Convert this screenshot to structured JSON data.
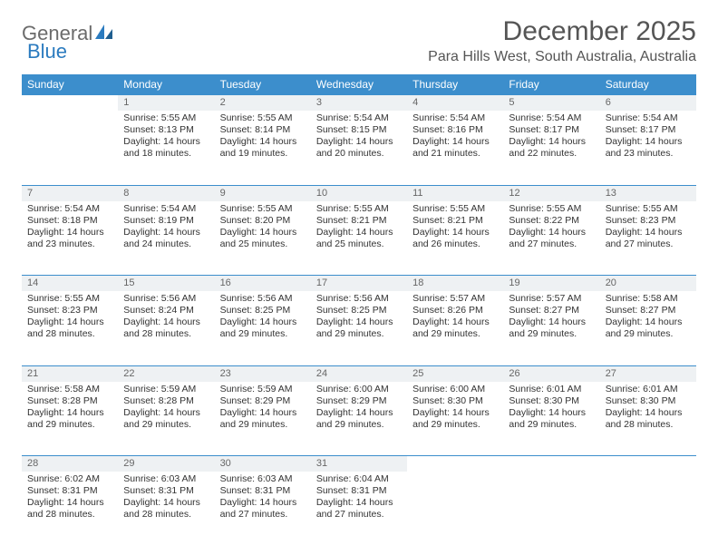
{
  "brand": {
    "text1": "General",
    "text2": "Blue",
    "logo_color": "#2b7bbf",
    "text_color": "#6b6b6b"
  },
  "title": "December 2025",
  "location": "Para Hills West, South Australia, Australia",
  "colors": {
    "header_bg": "#3c8ecc",
    "header_text": "#ffffff",
    "daynum_bg": "#eef1f3",
    "daynum_text": "#666666",
    "body_text": "#333333",
    "row_border": "#3c8ecc",
    "page_bg": "#ffffff"
  },
  "typography": {
    "title_fontsize": 30,
    "location_fontsize": 16,
    "header_fontsize": 12,
    "cell_fontsize": 10.5,
    "font_family": "Arial"
  },
  "day_headers": [
    "Sunday",
    "Monday",
    "Tuesday",
    "Wednesday",
    "Thursday",
    "Friday",
    "Saturday"
  ],
  "weeks": [
    [
      null,
      {
        "n": "1",
        "sr": "Sunrise: 5:55 AM",
        "ss": "Sunset: 8:13 PM",
        "dl": "Daylight: 14 hours and 18 minutes."
      },
      {
        "n": "2",
        "sr": "Sunrise: 5:55 AM",
        "ss": "Sunset: 8:14 PM",
        "dl": "Daylight: 14 hours and 19 minutes."
      },
      {
        "n": "3",
        "sr": "Sunrise: 5:54 AM",
        "ss": "Sunset: 8:15 PM",
        "dl": "Daylight: 14 hours and 20 minutes."
      },
      {
        "n": "4",
        "sr": "Sunrise: 5:54 AM",
        "ss": "Sunset: 8:16 PM",
        "dl": "Daylight: 14 hours and 21 minutes."
      },
      {
        "n": "5",
        "sr": "Sunrise: 5:54 AM",
        "ss": "Sunset: 8:17 PM",
        "dl": "Daylight: 14 hours and 22 minutes."
      },
      {
        "n": "6",
        "sr": "Sunrise: 5:54 AM",
        "ss": "Sunset: 8:17 PM",
        "dl": "Daylight: 14 hours and 23 minutes."
      }
    ],
    [
      {
        "n": "7",
        "sr": "Sunrise: 5:54 AM",
        "ss": "Sunset: 8:18 PM",
        "dl": "Daylight: 14 hours and 23 minutes."
      },
      {
        "n": "8",
        "sr": "Sunrise: 5:54 AM",
        "ss": "Sunset: 8:19 PM",
        "dl": "Daylight: 14 hours and 24 minutes."
      },
      {
        "n": "9",
        "sr": "Sunrise: 5:55 AM",
        "ss": "Sunset: 8:20 PM",
        "dl": "Daylight: 14 hours and 25 minutes."
      },
      {
        "n": "10",
        "sr": "Sunrise: 5:55 AM",
        "ss": "Sunset: 8:21 PM",
        "dl": "Daylight: 14 hours and 25 minutes."
      },
      {
        "n": "11",
        "sr": "Sunrise: 5:55 AM",
        "ss": "Sunset: 8:21 PM",
        "dl": "Daylight: 14 hours and 26 minutes."
      },
      {
        "n": "12",
        "sr": "Sunrise: 5:55 AM",
        "ss": "Sunset: 8:22 PM",
        "dl": "Daylight: 14 hours and 27 minutes."
      },
      {
        "n": "13",
        "sr": "Sunrise: 5:55 AM",
        "ss": "Sunset: 8:23 PM",
        "dl": "Daylight: 14 hours and 27 minutes."
      }
    ],
    [
      {
        "n": "14",
        "sr": "Sunrise: 5:55 AM",
        "ss": "Sunset: 8:23 PM",
        "dl": "Daylight: 14 hours and 28 minutes."
      },
      {
        "n": "15",
        "sr": "Sunrise: 5:56 AM",
        "ss": "Sunset: 8:24 PM",
        "dl": "Daylight: 14 hours and 28 minutes."
      },
      {
        "n": "16",
        "sr": "Sunrise: 5:56 AM",
        "ss": "Sunset: 8:25 PM",
        "dl": "Daylight: 14 hours and 29 minutes."
      },
      {
        "n": "17",
        "sr": "Sunrise: 5:56 AM",
        "ss": "Sunset: 8:25 PM",
        "dl": "Daylight: 14 hours and 29 minutes."
      },
      {
        "n": "18",
        "sr": "Sunrise: 5:57 AM",
        "ss": "Sunset: 8:26 PM",
        "dl": "Daylight: 14 hours and 29 minutes."
      },
      {
        "n": "19",
        "sr": "Sunrise: 5:57 AM",
        "ss": "Sunset: 8:27 PM",
        "dl": "Daylight: 14 hours and 29 minutes."
      },
      {
        "n": "20",
        "sr": "Sunrise: 5:58 AM",
        "ss": "Sunset: 8:27 PM",
        "dl": "Daylight: 14 hours and 29 minutes."
      }
    ],
    [
      {
        "n": "21",
        "sr": "Sunrise: 5:58 AM",
        "ss": "Sunset: 8:28 PM",
        "dl": "Daylight: 14 hours and 29 minutes."
      },
      {
        "n": "22",
        "sr": "Sunrise: 5:59 AM",
        "ss": "Sunset: 8:28 PM",
        "dl": "Daylight: 14 hours and 29 minutes."
      },
      {
        "n": "23",
        "sr": "Sunrise: 5:59 AM",
        "ss": "Sunset: 8:29 PM",
        "dl": "Daylight: 14 hours and 29 minutes."
      },
      {
        "n": "24",
        "sr": "Sunrise: 6:00 AM",
        "ss": "Sunset: 8:29 PM",
        "dl": "Daylight: 14 hours and 29 minutes."
      },
      {
        "n": "25",
        "sr": "Sunrise: 6:00 AM",
        "ss": "Sunset: 8:30 PM",
        "dl": "Daylight: 14 hours and 29 minutes."
      },
      {
        "n": "26",
        "sr": "Sunrise: 6:01 AM",
        "ss": "Sunset: 8:30 PM",
        "dl": "Daylight: 14 hours and 29 minutes."
      },
      {
        "n": "27",
        "sr": "Sunrise: 6:01 AM",
        "ss": "Sunset: 8:30 PM",
        "dl": "Daylight: 14 hours and 28 minutes."
      }
    ],
    [
      {
        "n": "28",
        "sr": "Sunrise: 6:02 AM",
        "ss": "Sunset: 8:31 PM",
        "dl": "Daylight: 14 hours and 28 minutes."
      },
      {
        "n": "29",
        "sr": "Sunrise: 6:03 AM",
        "ss": "Sunset: 8:31 PM",
        "dl": "Daylight: 14 hours and 28 minutes."
      },
      {
        "n": "30",
        "sr": "Sunrise: 6:03 AM",
        "ss": "Sunset: 8:31 PM",
        "dl": "Daylight: 14 hours and 27 minutes."
      },
      {
        "n": "31",
        "sr": "Sunrise: 6:04 AM",
        "ss": "Sunset: 8:31 PM",
        "dl": "Daylight: 14 hours and 27 minutes."
      },
      null,
      null,
      null
    ]
  ]
}
